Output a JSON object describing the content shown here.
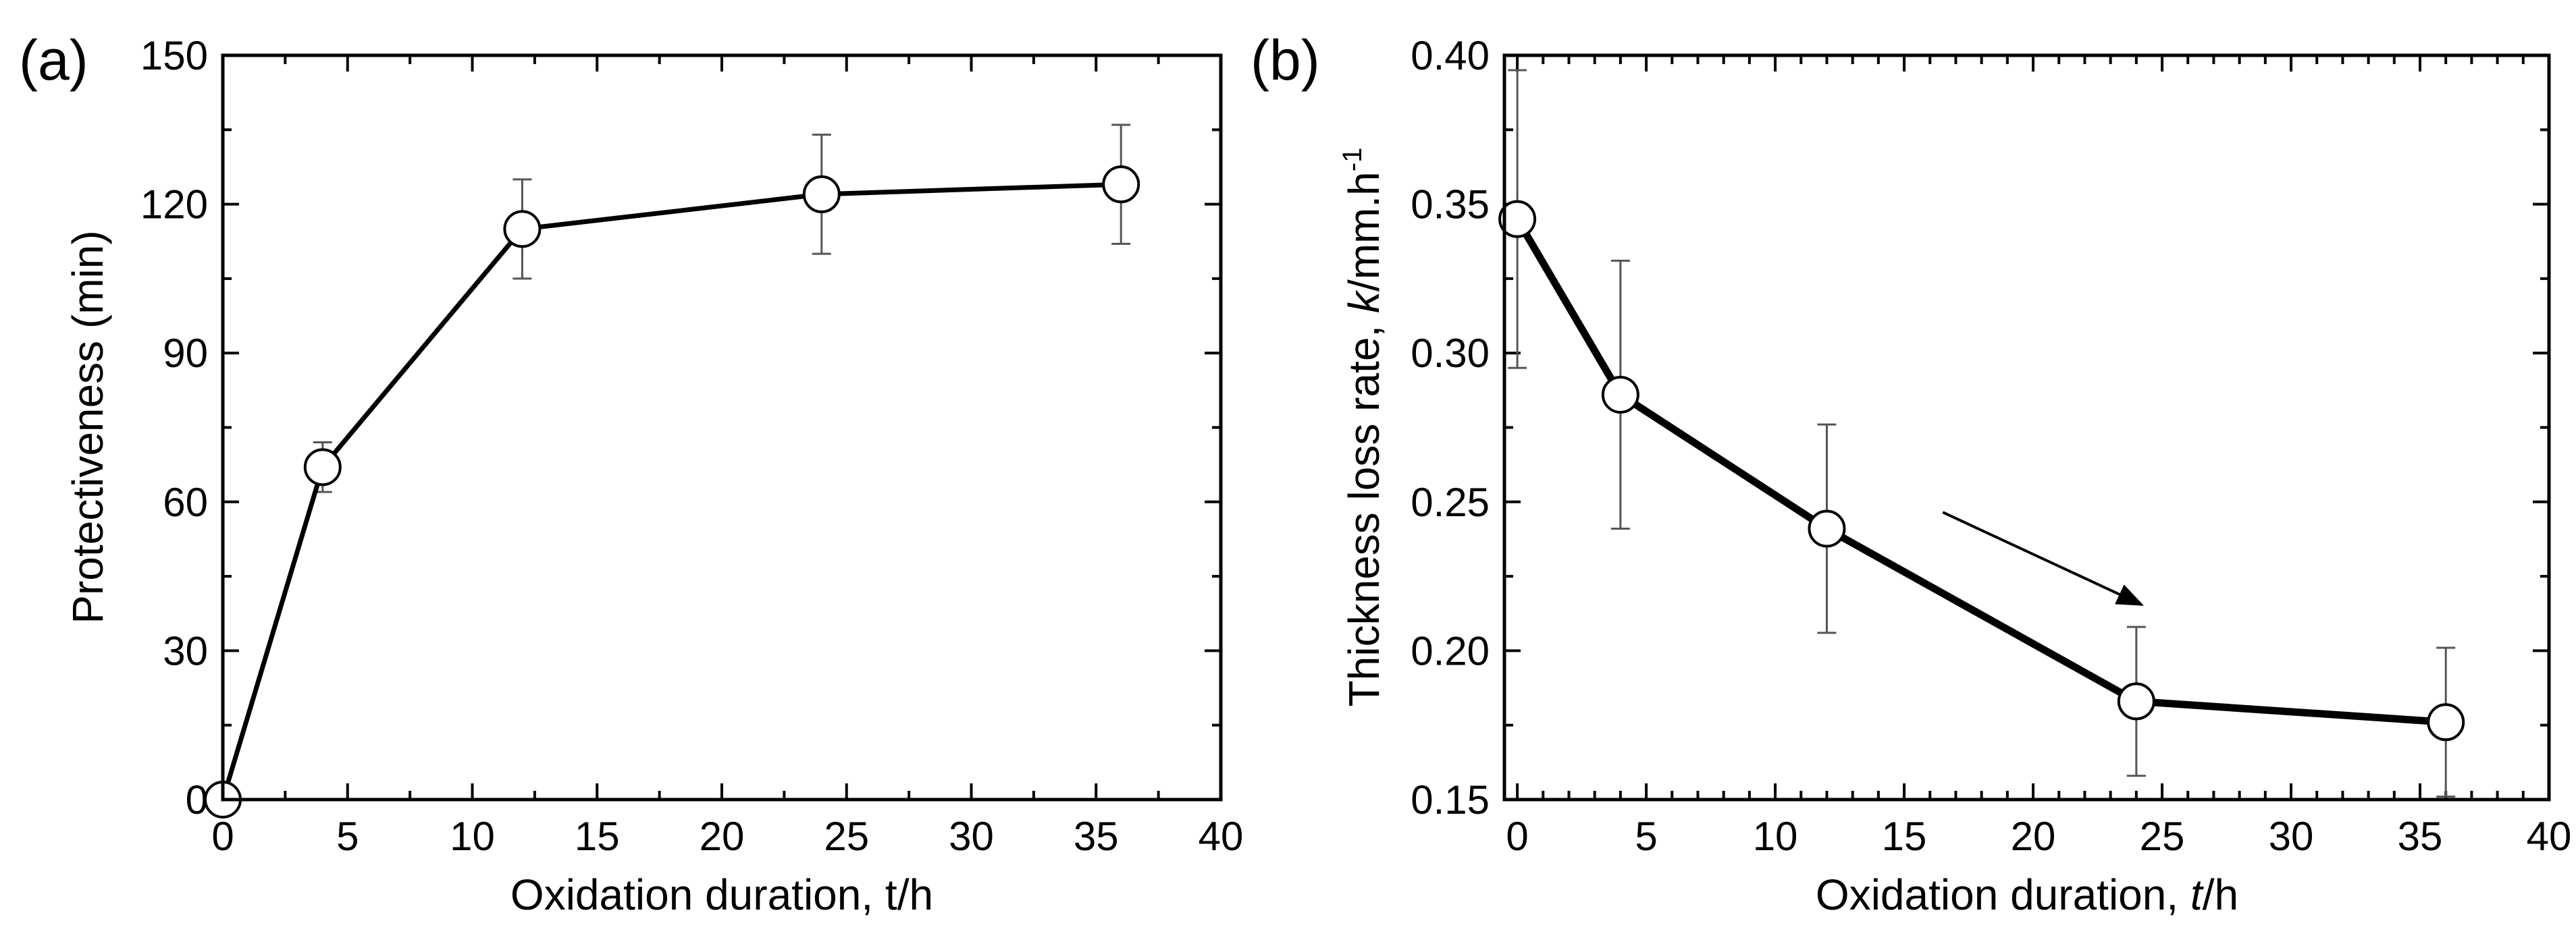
{
  "chart_data": [
    {
      "type": "line",
      "panel_label": "(a)",
      "title": "",
      "xlabel": "Oxidation duration, t/h",
      "ylabel": "Protectiveness (min)",
      "xlim": [
        0,
        40
      ],
      "ylim": [
        0,
        150
      ],
      "xticks": [
        0,
        5,
        10,
        15,
        20,
        25,
        30,
        35,
        40
      ],
      "yticks": [
        0,
        30,
        60,
        90,
        120,
        150
      ],
      "xtick_labels": [
        "0",
        "5",
        "10",
        "15",
        "20",
        "25",
        "30",
        "35",
        "40"
      ],
      "ytick_labels": [
        "0",
        "30",
        "60",
        "90",
        "120",
        "150"
      ],
      "series": [
        {
          "name": "Protectiveness",
          "x": [
            0,
            4,
            12,
            24,
            36
          ],
          "y": [
            0,
            67,
            115,
            122,
            124
          ],
          "err_low": [
            0,
            62,
            105,
            110,
            112
          ],
          "err_high": [
            0,
            72,
            125,
            134,
            136
          ]
        }
      ],
      "grid": false,
      "legend": "none"
    },
    {
      "type": "line",
      "panel_label": "(b)",
      "title": "",
      "xlabel_prefix": "Oxidation duration, ",
      "xlabel_var": "t",
      "xlabel_suffix": "/h",
      "ylabel_prefix": "Thickness loss rate, ",
      "ylabel_var": "k",
      "ylabel_unit": "/mm.h",
      "ylabel_sup": "-1",
      "xlim": [
        -0.5,
        40
      ],
      "ylim": [
        0.15,
        0.4
      ],
      "xticks": [
        0,
        5,
        10,
        15,
        20,
        25,
        30,
        35,
        40
      ],
      "yticks": [
        0.15,
        0.2,
        0.25,
        0.3,
        0.35,
        0.4
      ],
      "xtick_labels": [
        "0",
        "5",
        "10",
        "15",
        "20",
        "25",
        "30",
        "35",
        "40"
      ],
      "ytick_labels": [
        "0.15",
        "0.20",
        "0.25",
        "0.30",
        "0.35",
        "0.40"
      ],
      "series": [
        {
          "name": "Thickness loss rate",
          "x": [
            0,
            4,
            12,
            24,
            36
          ],
          "y": [
            0.345,
            0.286,
            0.241,
            0.183,
            0.176
          ],
          "err_low": [
            0.295,
            0.241,
            0.206,
            0.158,
            0.151
          ],
          "err_high": [
            0.395,
            0.331,
            0.276,
            0.208,
            0.201
          ]
        }
      ],
      "annotations": [
        {
          "type": "arrow",
          "from": [
            16.5,
            0.2465
          ],
          "to": [
            24.2,
            0.2155
          ]
        }
      ],
      "grid": false,
      "legend": "none"
    }
  ]
}
